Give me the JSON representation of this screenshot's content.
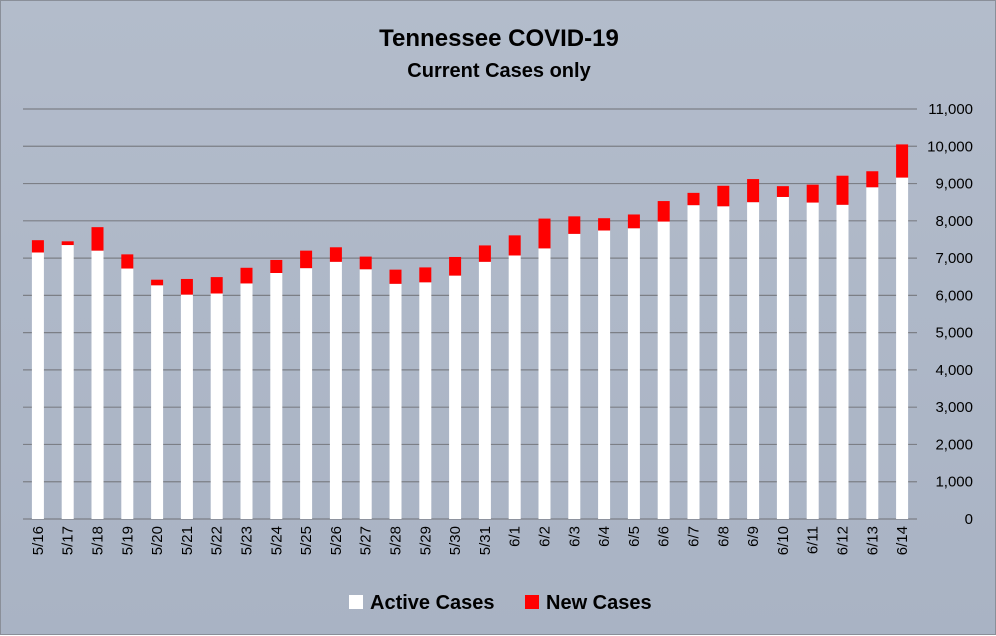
{
  "chart_data": {
    "type": "bar",
    "stacked": true,
    "title": "Tennessee COVID-19",
    "subtitle": "Current Cases only",
    "categories": [
      "5/16",
      "5/17",
      "5/18",
      "5/19",
      "5/20",
      "5/21",
      "5/22",
      "5/23",
      "5/24",
      "5/25",
      "5/26",
      "5/27",
      "5/28",
      "5/29",
      "5/30",
      "5/31",
      "6/1",
      "6/2",
      "6/3",
      "6/4",
      "6/5",
      "6/6",
      "6/7",
      "6/8",
      "6/9",
      "6/10",
      "6/11",
      "6/12",
      "6/13",
      "6/14"
    ],
    "series": [
      {
        "name": "Active Cases",
        "color": "#ffffff",
        "values": [
          7150,
          7350,
          7200,
          6720,
          6270,
          6020,
          6050,
          6320,
          6600,
          6730,
          6900,
          6700,
          6310,
          6350,
          6530,
          6900,
          7070,
          7260,
          7650,
          7740,
          7800,
          7980,
          8420,
          8390,
          8500,
          8640,
          8490,
          8430,
          8900,
          9160
        ]
      },
      {
        "name": "New Cases",
        "color": "#ff0000",
        "values": [
          330,
          100,
          630,
          380,
          150,
          420,
          440,
          420,
          350,
          470,
          390,
          340,
          380,
          400,
          500,
          440,
          540,
          800,
          470,
          330,
          370,
          550,
          330,
          550,
          620,
          290,
          480,
          780,
          430,
          890
        ]
      }
    ],
    "yaxis": {
      "min": 0,
      "max": 11000,
      "step": 1000,
      "position": "right",
      "tick_labels": [
        "0",
        "1,000",
        "2,000",
        "3,000",
        "4,000",
        "5,000",
        "6,000",
        "7,000",
        "8,000",
        "9,000",
        "10,000",
        "11,000"
      ]
    },
    "xlabel": "",
    "ylabel": "",
    "grid": true,
    "legend_position": "bottom"
  }
}
